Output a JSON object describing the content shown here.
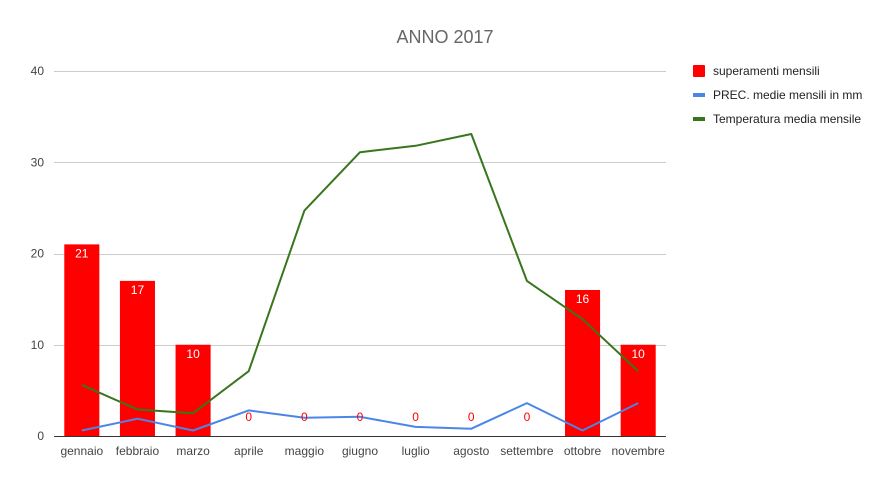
{
  "chart_data": {
    "type": "bar",
    "title": "ANNO 2017",
    "xlabel": "",
    "ylabel": "",
    "ylim": [
      0,
      40
    ],
    "yticks": [
      0,
      10,
      20,
      30,
      40
    ],
    "grid": true,
    "legend_position": "right",
    "categories": [
      "gennaio",
      "febbraio",
      "marzo",
      "aprile",
      "maggio",
      "giugno",
      "luglio",
      "agosto",
      "settembre",
      "ottobre",
      "novembre"
    ],
    "series": [
      {
        "name": "superamenti mensili",
        "type": "bar",
        "color": "#ff0000",
        "values": [
          21,
          17,
          10,
          0,
          0,
          0,
          0,
          0,
          0,
          16,
          10
        ],
        "data_labels": [
          "21",
          "17",
          "10",
          "0",
          "0",
          "0",
          "0",
          "0",
          "0",
          "16",
          "10"
        ]
      },
      {
        "name": "PREC. medie mensili in mm",
        "type": "line",
        "color": "#4a86e8",
        "values": [
          0.6,
          1.9,
          0.6,
          2.8,
          2.0,
          2.1,
          1.0,
          0.8,
          3.6,
          0.6,
          3.6
        ]
      },
      {
        "name": "Temperatura media mensile",
        "type": "line",
        "color": "#38761d",
        "values": [
          5.6,
          2.9,
          2.5,
          7.1,
          24.7,
          31.1,
          31.8,
          33.1,
          17.0,
          12.8,
          7.1
        ]
      }
    ]
  }
}
